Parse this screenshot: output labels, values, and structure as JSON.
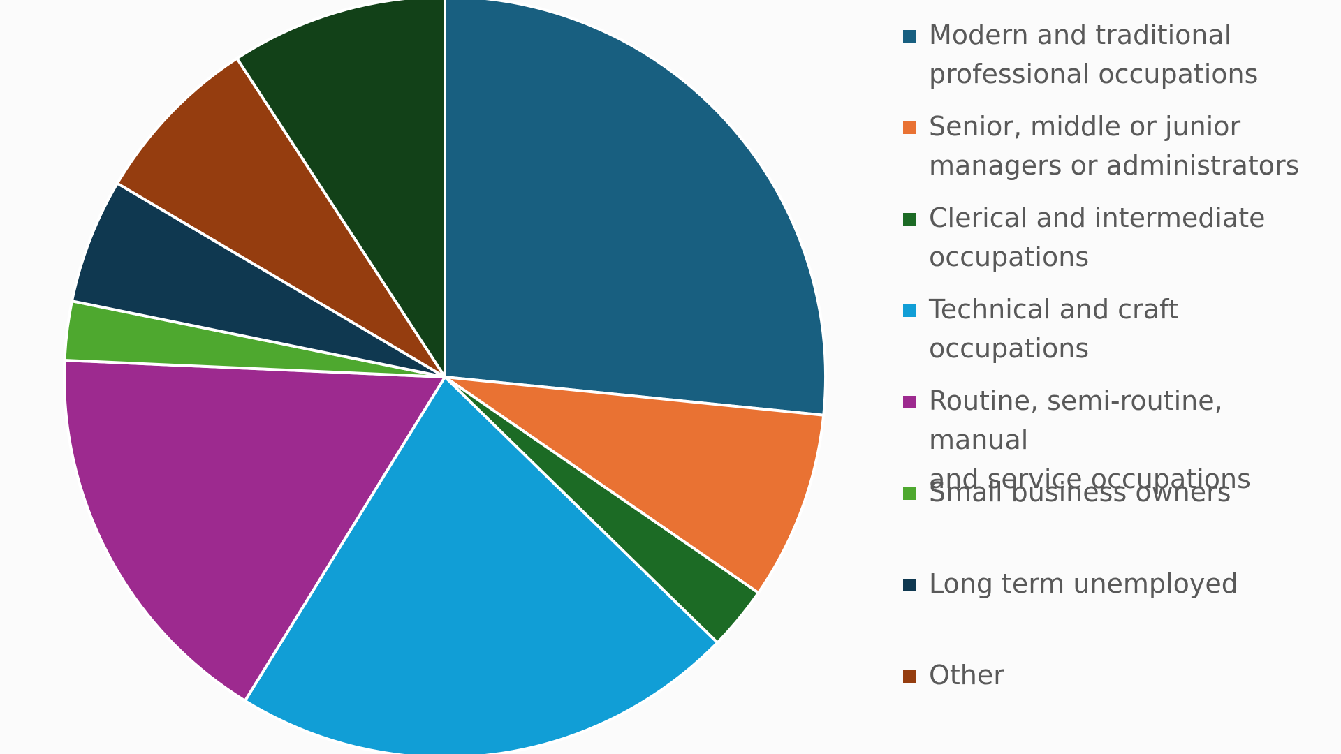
{
  "chart_data": {
    "type": "pie",
    "title": "",
    "legend_position": "right",
    "start_angle_deg": 0,
    "direction": "clockwise",
    "slices": [
      {
        "label": "Modern and traditional\nprofessional occupations",
        "value": 26.6,
        "color": "#185f80"
      },
      {
        "label": "Senior, middle or junior\nmanagers or administrators",
        "value": 8.0,
        "color": "#e97233"
      },
      {
        "label": "Clerical and intermediate\noccupations",
        "value": 2.7,
        "color": "#1c6b25"
      },
      {
        "label": "Technical and craft\noccupations",
        "value": 21.5,
        "color": "#119ed6"
      },
      {
        "label": "Routine, semi-routine, manual\nand service occupations",
        "value": 16.9,
        "color": "#9d2a8f"
      },
      {
        "label": "Small business owners",
        "value": 2.5,
        "color": "#4ea82f"
      },
      {
        "label": "Long term unemployed",
        "value": 5.3,
        "color": "#0f3850"
      },
      {
        "label": "Other",
        "value": 7.3,
        "color": "#953d0f"
      },
      {
        "label": "",
        "value": 9.2,
        "color": "#124118"
      }
    ]
  }
}
